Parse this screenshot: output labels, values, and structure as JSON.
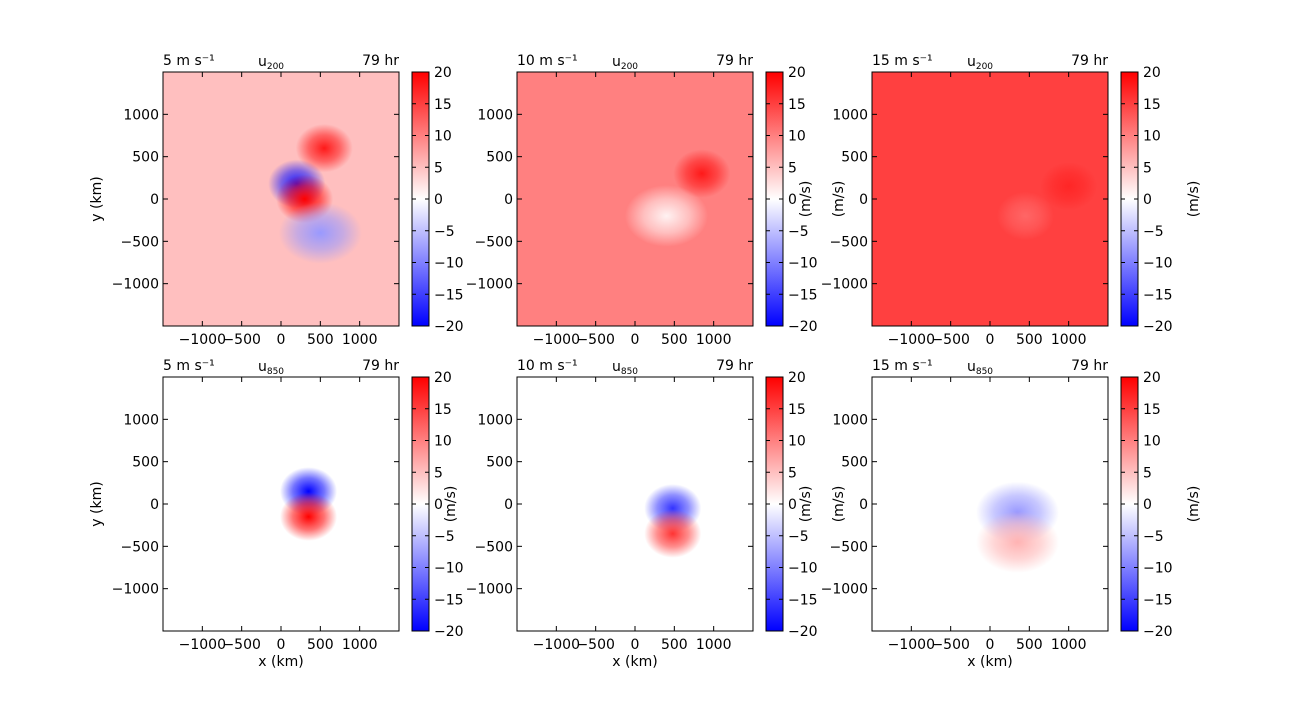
{
  "chart_data": [
    {
      "type": "heatmap",
      "speed_label": "5 m s⁻¹",
      "field_label": "u",
      "field_sub": "200",
      "time_label": "79 hr",
      "xlabel": "",
      "ylabel": "y (km)",
      "xlim": [
        -1500,
        1500
      ],
      "ylim": [
        -1500,
        1500
      ],
      "xticks": [
        "−1000",
        "−500",
        "0",
        "500",
        "1000"
      ],
      "xtick_values": [
        -1000,
        -500,
        0,
        500,
        1000
      ],
      "yticks": [
        "1000",
        "500",
        "0",
        "−500",
        "−1000"
      ],
      "ytick_values": [
        1000,
        500,
        0,
        -500,
        -1000
      ],
      "colorbar_label": "",
      "background_value": 5,
      "features": [
        {
          "x": 550,
          "y": 600,
          "value": 18
        },
        {
          "x": 200,
          "y": 180,
          "value": -18
        },
        {
          "x": 300,
          "y": 0,
          "value": 20
        },
        {
          "x": 500,
          "y": -400,
          "value": -8
        }
      ]
    },
    {
      "type": "heatmap",
      "speed_label": "10 m s⁻¹",
      "field_label": "u",
      "field_sub": "200",
      "time_label": "79 hr",
      "xlabel": "",
      "ylabel": "",
      "xlim": [
        -1500,
        1500
      ],
      "ylim": [
        -1500,
        1500
      ],
      "xticks": [
        "−1000",
        "−500",
        "0",
        "500",
        "1000"
      ],
      "xtick_values": [
        -1000,
        -500,
        0,
        500,
        1000
      ],
      "yticks": [
        "1000",
        "500",
        "0",
        "−500",
        "−1000"
      ],
      "ytick_values": [
        1000,
        500,
        0,
        -500,
        -1000
      ],
      "colorbar_label": "(m/s)",
      "background_value": 10,
      "features": [
        {
          "x": 850,
          "y": 300,
          "value": 18
        },
        {
          "x": 400,
          "y": -200,
          "value": 1
        }
      ]
    },
    {
      "type": "heatmap",
      "speed_label": "15 m s⁻¹",
      "field_label": "u",
      "field_sub": "200",
      "time_label": "79 hr",
      "xlabel": "",
      "ylabel": "(m/s)",
      "xlim": [
        -1500,
        1500
      ],
      "ylim": [
        -1500,
        1500
      ],
      "xticks": [
        "−1000",
        "−500",
        "0",
        "500",
        "1000"
      ],
      "xtick_values": [
        -1000,
        -500,
        0,
        500,
        1000
      ],
      "yticks": [
        "1000",
        "500",
        "0",
        "−500",
        "−1000"
      ],
      "ytick_values": [
        1000,
        500,
        0,
        -500,
        -1000
      ],
      "colorbar_label": "(m/s)",
      "background_value": 15,
      "features": [
        {
          "x": 1000,
          "y": 150,
          "value": 17
        },
        {
          "x": 450,
          "y": -200,
          "value": 12
        }
      ]
    },
    {
      "type": "heatmap",
      "speed_label": "5 m s⁻¹",
      "field_label": "u",
      "field_sub": "850",
      "time_label": "79 hr",
      "xlabel": "x (km)",
      "ylabel": "y (km)",
      "xlim": [
        -1500,
        1500
      ],
      "ylim": [
        -1500,
        1500
      ],
      "xticks": [
        "−1000",
        "−500",
        "0",
        "500",
        "1000"
      ],
      "xtick_values": [
        -1000,
        -500,
        0,
        500,
        1000
      ],
      "yticks": [
        "1000",
        "500",
        "0",
        "−500",
        "−1000"
      ],
      "ytick_values": [
        1000,
        500,
        0,
        -500,
        -1000
      ],
      "colorbar_label": "",
      "background_value": 0,
      "features": [
        {
          "x": 350,
          "y": 150,
          "value": -20
        },
        {
          "x": 350,
          "y": -150,
          "value": 20
        }
      ]
    },
    {
      "type": "heatmap",
      "speed_label": "10 m s⁻¹",
      "field_label": "u",
      "field_sub": "850",
      "time_label": "79 hr",
      "xlabel": "x (km)",
      "ylabel": "(m/s)",
      "xlim": [
        -1500,
        1500
      ],
      "ylim": [
        -1500,
        1500
      ],
      "xticks": [
        "−1000",
        "−500",
        "0",
        "500",
        "1000"
      ],
      "xtick_values": [
        -1000,
        -500,
        0,
        500,
        1000
      ],
      "yticks": [
        "1000",
        "500",
        "0",
        "−500",
        "−1000"
      ],
      "ytick_values": [
        1000,
        500,
        0,
        -500,
        -1000
      ],
      "colorbar_label": "(m/s)",
      "background_value": 0,
      "features": [
        {
          "x": 480,
          "y": -50,
          "value": -16
        },
        {
          "x": 480,
          "y": -350,
          "value": 16
        }
      ]
    },
    {
      "type": "heatmap",
      "speed_label": "15 m s⁻¹",
      "field_label": "u",
      "field_sub": "850",
      "time_label": "79 hr",
      "xlabel": "x (km)",
      "ylabel": "(m/s)",
      "xlim": [
        -1500,
        1500
      ],
      "ylim": [
        -1500,
        1500
      ],
      "xticks": [
        "−1000",
        "−500",
        "0",
        "500",
        "1000"
      ],
      "xtick_values": [
        -1000,
        -500,
        0,
        500,
        1000
      ],
      "yticks": [
        "1000",
        "500",
        "0",
        "−500",
        "−1000"
      ],
      "ytick_values": [
        1000,
        500,
        0,
        -500,
        -1000
      ],
      "colorbar_label": "(m/s)",
      "background_value": 0,
      "features": [
        {
          "x": 350,
          "y": -100,
          "value": -8
        },
        {
          "x": 350,
          "y": -450,
          "value": 6
        }
      ]
    }
  ],
  "colorbar": {
    "range": [
      -20,
      20
    ],
    "ticks": [
      "20",
      "15",
      "10",
      "5",
      "0",
      "−5",
      "−10",
      "−15",
      "−20"
    ],
    "tick_values": [
      20,
      15,
      10,
      5,
      0,
      -5,
      -10,
      -15,
      -20
    ],
    "colormap": "bwr",
    "low_color": "#0000ff",
    "mid_color": "#ffffff",
    "high_color": "#ff0000"
  }
}
